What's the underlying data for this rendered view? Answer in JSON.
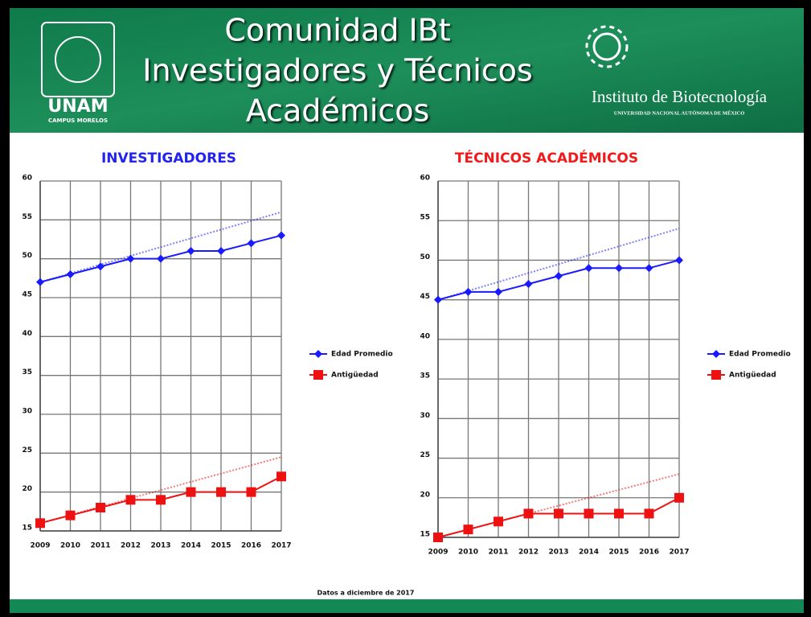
{
  "header": {
    "title_lines": [
      "Comunidad IBt",
      "Investigadores y Técnicos",
      "Académicos"
    ],
    "unam": "UNAM",
    "campus": "CAMPUS MORELOS",
    "institute": "Instituto de Biotecnología",
    "university": "UNIVERSIDAD NACIONAL AUTÓNOMA DE MÉXICO"
  },
  "footer": "Datos a diciembre de 2017",
  "chart_data": [
    {
      "type": "line",
      "title": "INVESTIGADORES",
      "title_color": "#2323f0",
      "categories": [
        "2009",
        "2010",
        "2011",
        "2012",
        "2013",
        "2014",
        "2015",
        "2016",
        "2017"
      ],
      "series": [
        {
          "name": "Edad Promedio",
          "color": "#1a1aff",
          "marker": "diamond",
          "values": [
            47,
            48,
            49,
            50,
            50,
            51,
            51,
            52,
            53
          ],
          "trend": [
            47,
            56
          ]
        },
        {
          "name": "Antigüedad",
          "color": "#ee1111",
          "marker": "square",
          "values": [
            16,
            17,
            18,
            19,
            19,
            20,
            20,
            20,
            22
          ],
          "trend": [
            16,
            24.5
          ]
        }
      ],
      "ylim": [
        15,
        60
      ],
      "yticks": [
        15,
        20,
        25,
        30,
        35,
        40,
        45,
        50,
        55,
        60
      ],
      "grid": true,
      "legend": "right"
    },
    {
      "type": "line",
      "title": "TÉCNICOS ACADÉMICOS",
      "title_color": "#f01a1a",
      "categories": [
        "2009",
        "2010",
        "2011",
        "2012",
        "2013",
        "2014",
        "2015",
        "2016",
        "2017"
      ],
      "series": [
        {
          "name": "Edad Promedio",
          "color": "#1a1aff",
          "marker": "diamond",
          "values": [
            45,
            46,
            46,
            47,
            48,
            49,
            49,
            49,
            50
          ],
          "trend": [
            45,
            54
          ]
        },
        {
          "name": "Antigüedad",
          "color": "#ee1111",
          "marker": "square",
          "values": [
            15,
            16,
            17,
            18,
            18,
            18,
            18,
            18,
            20
          ],
          "trend": [
            15,
            23
          ]
        }
      ],
      "ylim": [
        15,
        60
      ],
      "yticks": [
        15,
        20,
        25,
        30,
        35,
        40,
        45,
        50,
        55,
        60
      ],
      "grid": true,
      "legend": "right"
    }
  ]
}
